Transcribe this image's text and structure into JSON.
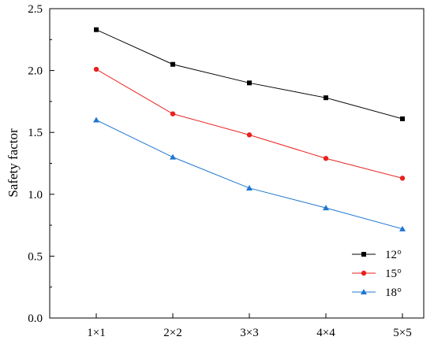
{
  "chart_data": {
    "type": "line",
    "title": "",
    "xlabel": "",
    "ylabel": "Safety factor",
    "categories": [
      "1×1",
      "2×2",
      "3×3",
      "4×4",
      "5×5"
    ],
    "ylim": [
      0.0,
      2.5
    ],
    "yticks": [
      "0.0",
      "0.5",
      "1.0",
      "1.5",
      "2.0",
      "2.5"
    ],
    "grid": false,
    "legend_position": "bottom-right",
    "series": [
      {
        "name": "12°",
        "values": [
          2.33,
          2.05,
          1.9,
          1.78,
          1.61
        ],
        "color": "#000000",
        "marker": "square"
      },
      {
        "name": "15°",
        "values": [
          2.01,
          1.65,
          1.48,
          1.29,
          1.13
        ],
        "color": "#e8211d",
        "marker": "circle"
      },
      {
        "name": "18°",
        "values": [
          1.6,
          1.3,
          1.05,
          0.89,
          0.72
        ],
        "color": "#1f77d0",
        "marker": "triangle"
      }
    ]
  }
}
